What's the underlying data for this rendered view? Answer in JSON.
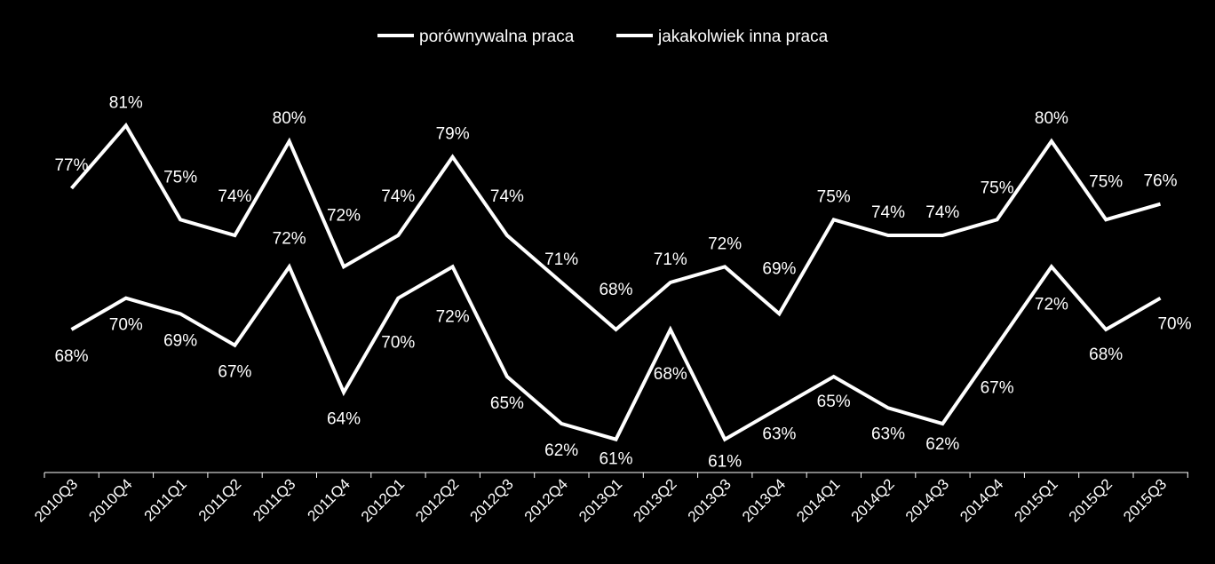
{
  "chart_data": {
    "type": "line",
    "categories": [
      "2010Q3",
      "2010Q4",
      "2011Q1",
      "2011Q2",
      "2011Q3",
      "2011Q4",
      "2012Q1",
      "2012Q2",
      "2012Q3",
      "2012Q4",
      "2013Q1",
      "2013Q2",
      "2013Q3",
      "2013Q4",
      "2014Q1",
      "2014Q2",
      "2014Q3",
      "2014Q4",
      "2015Q1",
      "2015Q2",
      "2015Q3"
    ],
    "series": [
      {
        "name": "porównywalna praca",
        "values": [
          68,
          70,
          69,
          67,
          72,
          64,
          70,
          72,
          65,
          62,
          61,
          68,
          61,
          63,
          65,
          63,
          62,
          67,
          72,
          68,
          70
        ],
        "labels": [
          "68%",
          "70%",
          "69%",
          "67%",
          "72%",
          "64%",
          "70%",
          "72%",
          "65%",
          "62%",
          "61%",
          "68%",
          "61%",
          "63%",
          "65%",
          "63%",
          "62%",
          "67%",
          "72%",
          "68%",
          "70%"
        ]
      },
      {
        "name": "jakakolwiek inna praca",
        "values": [
          77,
          81,
          75,
          74,
          80,
          72,
          74,
          79,
          74,
          71,
          68,
          71,
          72,
          69,
          75,
          74,
          74,
          75,
          80,
          75,
          76
        ],
        "labels": [
          "77%",
          "81%",
          "75%",
          "74%",
          "80%",
          "72%",
          "74%",
          "79%",
          "74%",
          "71%",
          "68%",
          "71%",
          "72%",
          "69%",
          "75%",
          "74%",
          "74%",
          "75%",
          "80%",
          "75%",
          "76%"
        ]
      }
    ],
    "ylim": [
      56,
      86
    ],
    "legend": "top-center",
    "grid": false,
    "title": "",
    "xlabel": "",
    "ylabel": ""
  },
  "colors": {
    "background": "#000000",
    "line": "#ffffff",
    "text": "#ffffff"
  }
}
